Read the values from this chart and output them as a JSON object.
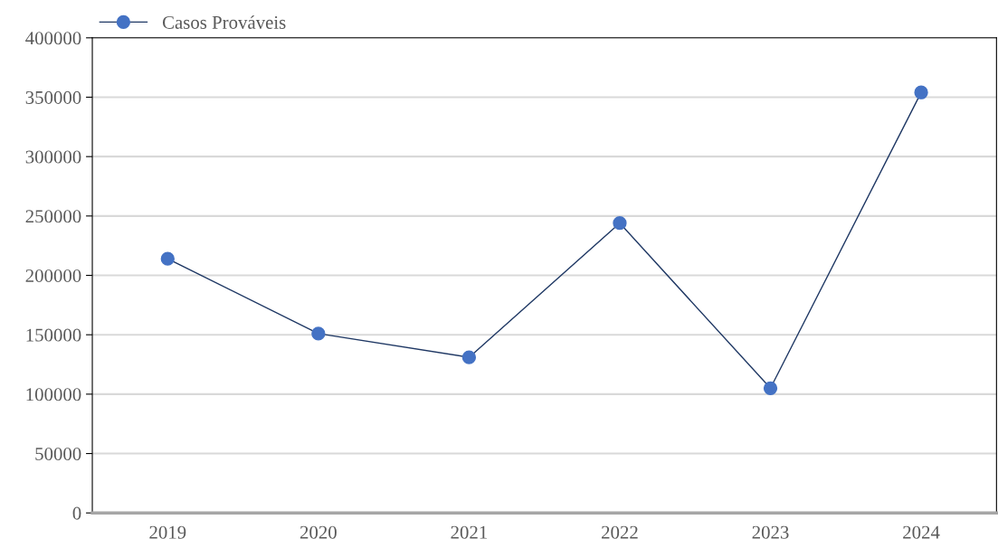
{
  "chart_data": {
    "type": "line",
    "categories": [
      "2019",
      "2020",
      "2021",
      "2022",
      "2023",
      "2024"
    ],
    "series": [
      {
        "name": "Casos Prováveis",
        "color": "#4472c4",
        "values": [
          214000,
          151000,
          131000,
          244000,
          105000,
          354000
        ]
      }
    ],
    "ylim": [
      0,
      400000
    ],
    "yticks": [
      0,
      50000,
      100000,
      150000,
      200000,
      250000,
      300000,
      350000,
      400000
    ],
    "grid": "y",
    "legend": "top left",
    "marker": "circle",
    "line_style": "solid"
  }
}
